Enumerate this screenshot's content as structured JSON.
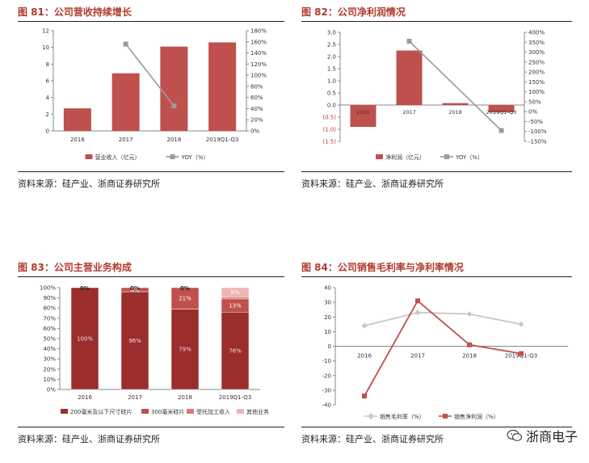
{
  "charts": [
    {
      "title": "图  81：公司营收持续增长",
      "source": "资料来源：硅产业、浙商证券研究所",
      "chart_data": {
        "type": "bar",
        "categories": [
          "2016",
          "2017",
          "2018",
          "2019Q1-Q3"
        ],
        "series": [
          {
            "name": "营业收入（亿元）",
            "type": "bar",
            "axis": "left",
            "values": [
              2.7,
              6.9,
              10.1,
              10.6
            ]
          },
          {
            "name": "YOY（%）",
            "type": "line",
            "axis": "right",
            "values": [
              null,
              156,
              45,
              null
            ]
          }
        ],
        "yticks": [
          "0",
          "2",
          "4",
          "6",
          "8",
          "10",
          "12"
        ],
        "ylim": [
          0,
          12
        ],
        "y2ticks": [
          "0%",
          "20%",
          "40%",
          "60%",
          "80%",
          "100%",
          "120%",
          "140%",
          "160%",
          "180%"
        ],
        "y2lim": [
          0,
          180
        ],
        "legend": "bottom"
      }
    },
    {
      "title": "图  82：公司净利润情况",
      "source": "资料来源：硅产业、浙商证券研究所",
      "chart_data": {
        "type": "bar",
        "categories": [
          "2016",
          "2017",
          "2018",
          "2019Q1-Q3"
        ],
        "series": [
          {
            "name": "净利润（亿元）",
            "type": "bar",
            "axis": "left",
            "values": [
              -0.9,
              2.25,
              0.08,
              -0.3
            ]
          },
          {
            "name": "YOY（%）",
            "type": "line",
            "axis": "right",
            "values": [
              null,
              355,
              null,
              -95
            ]
          }
        ],
        "yticks": [
          "(1.5)",
          "(1.0)",
          "(0.5)",
          "0.0",
          "0.5",
          "1.0",
          "1.5",
          "2.0",
          "2.5",
          "3.0"
        ],
        "ylim": [
          -1.5,
          3.0
        ],
        "y2ticks": [
          "-150%",
          "-100%",
          "-50%",
          "0%",
          "50%",
          "100%",
          "150%",
          "200%",
          "250%",
          "300%",
          "350%",
          "400%"
        ],
        "y2lim": [
          -150,
          400
        ],
        "legend": "bottom"
      }
    },
    {
      "title": "图  83：公司主营业务构成",
      "source": "资料来源：硅产业、浙商证券研究所",
      "chart_data": {
        "type": "bar",
        "stacked": true,
        "categories": [
          "2016",
          "2017",
          "2018",
          "2019Q1-Q3"
        ],
        "series": [
          {
            "name": "200毫米及以下尺寸硅片",
            "values": [
              100,
              96,
              79,
              76
            ],
            "labels": [
              "100%",
              "96%",
              "79%",
              "76%"
            ]
          },
          {
            "name": "300毫米硅片",
            "values": [
              0,
              4,
              21,
              13
            ],
            "labels": [
              "0%",
              "4%",
              "21%",
              "13%"
            ]
          },
          {
            "name": "受托加工收入",
            "values": [
              0,
              0,
              0,
              2
            ],
            "labels": [
              "",
              "",
              "",
              ""
            ]
          },
          {
            "name": "其他业务",
            "values": [
              0,
              0,
              0,
              9
            ],
            "labels": [
              "",
              "",
              "",
              "9%"
            ]
          }
        ],
        "top_labels": [
          "0%",
          "0%",
          "0%",
          ""
        ],
        "yticks": [
          "0%",
          "10%",
          "20%",
          "30%",
          "40%",
          "50%",
          "60%",
          "70%",
          "80%",
          "90%",
          "100%"
        ],
        "ylim": [
          0,
          100
        ],
        "legend": "bottom"
      }
    },
    {
      "title": "图  84：公司销售毛利率与净利率情况",
      "source": "资料来源：硅产业、浙商证券研究所",
      "chart_data": {
        "type": "line",
        "categories": [
          "2016",
          "2017",
          "2018",
          "2019Q1-Q3"
        ],
        "series": [
          {
            "name": "销售毛利率（%）",
            "values": [
              14,
              23,
              22,
              15
            ]
          },
          {
            "name": "销售净利润（%）",
            "values": [
              -34,
              31,
              1,
              -5
            ]
          }
        ],
        "yticks": [
          "-40",
          "-30",
          "-20",
          "-10",
          "0",
          "10",
          "20",
          "30",
          "40"
        ],
        "ylim": [
          -40,
          40
        ],
        "legend": "bottom"
      }
    }
  ],
  "colors": {
    "bar": "#c0504d",
    "bar_dark": "#a83a3a",
    "line_grey": "#9a9a9a",
    "line_light": "#c8c8c8",
    "title": "#b03a2e",
    "stack": [
      "#9b2d2d",
      "#c0504d",
      "#d97a7a",
      "#eeb4b4"
    ]
  },
  "watermark": {
    "text": "浙商电子",
    "icon": "wechat-icon"
  }
}
